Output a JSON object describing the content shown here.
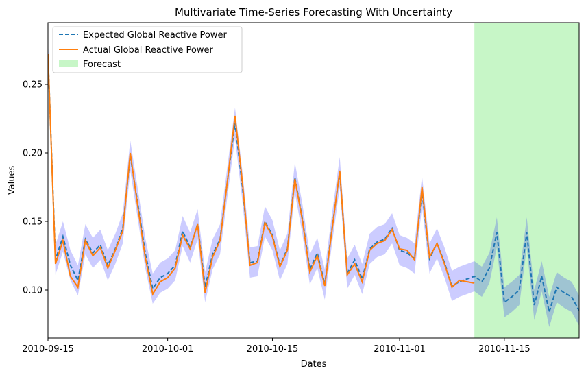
{
  "chart_data": {
    "type": "line",
    "title": "Multivariate Time-Series Forecasting With Uncertainty",
    "xlabel": "Dates",
    "ylabel": "Values",
    "x_tick_labels": [
      "2010-09-15",
      "2010-10-01",
      "2010-10-15",
      "2010-11-01",
      "2010-11-15"
    ],
    "x_tick_dates": [
      "2010-09-15",
      "2010-10-01",
      "2010-10-15",
      "2010-11-01",
      "2010-11-15"
    ],
    "xlim": [
      "2010-09-15",
      "2010-11-25"
    ],
    "y_tick_labels": [
      "0.10",
      "0.15",
      "0.20",
      "0.25"
    ],
    "y_ticks": [
      0.1,
      0.15,
      0.2,
      0.25
    ],
    "ylim": [
      0.065,
      0.295
    ],
    "grid": false,
    "legend_position": "upper-left",
    "legend": [
      "Expected Global Reactive Power",
      "Actual Global Reactive Power",
      "Forecast"
    ],
    "uncertainty_band_half_width": 0.011,
    "forecast_region": {
      "start": "2010-11-11",
      "end": "2010-11-25"
    },
    "colors": {
      "expected": "#1f77b4",
      "actual": "#ff7f0e",
      "band": "#0000ff",
      "band_opacity": 0.2,
      "forecast": "#90ee90",
      "forecast_opacity": 0.5
    },
    "series": [
      {
        "name": "Expected Global Reactive Power",
        "style": "dashed",
        "points": [
          [
            "2010-09-15",
            0.272
          ],
          [
            "2010-09-16",
            0.122
          ],
          [
            "2010-09-17",
            0.139
          ],
          [
            "2010-09-18",
            0.118
          ],
          [
            "2010-09-19",
            0.107
          ],
          [
            "2010-09-20",
            0.137
          ],
          [
            "2010-09-21",
            0.127
          ],
          [
            "2010-09-22",
            0.133
          ],
          [
            "2010-09-23",
            0.118
          ],
          [
            "2010-09-24",
            0.13
          ],
          [
            "2010-09-25",
            0.145
          ],
          [
            "2010-09-26",
            0.198
          ],
          [
            "2010-09-27",
            0.163
          ],
          [
            "2010-09-28",
            0.127
          ],
          [
            "2010-09-29",
            0.101
          ],
          [
            "2010-09-30",
            0.109
          ],
          [
            "2010-10-01",
            0.112
          ],
          [
            "2010-10-02",
            0.118
          ],
          [
            "2010-10-03",
            0.143
          ],
          [
            "2010-10-04",
            0.131
          ],
          [
            "2010-10-05",
            0.148
          ],
          [
            "2010-10-06",
            0.102
          ],
          [
            "2010-10-07",
            0.126
          ],
          [
            "2010-10-08",
            0.137
          ],
          [
            "2010-10-09",
            0.18
          ],
          [
            "2010-10-10",
            0.222
          ],
          [
            "2010-10-11",
            0.175
          ],
          [
            "2010-10-12",
            0.12
          ],
          [
            "2010-10-13",
            0.121
          ],
          [
            "2010-10-14",
            0.15
          ],
          [
            "2010-10-15",
            0.14
          ],
          [
            "2010-10-16",
            0.118
          ],
          [
            "2010-10-17",
            0.13
          ],
          [
            "2010-10-18",
            0.182
          ],
          [
            "2010-10-19",
            0.152
          ],
          [
            "2010-10-20",
            0.115
          ],
          [
            "2010-10-21",
            0.127
          ],
          [
            "2010-10-22",
            0.104
          ],
          [
            "2010-10-23",
            0.146
          ],
          [
            "2010-10-24",
            0.186
          ],
          [
            "2010-10-25",
            0.112
          ],
          [
            "2010-10-26",
            0.122
          ],
          [
            "2010-10-27",
            0.108
          ],
          [
            "2010-10-28",
            0.13
          ],
          [
            "2010-10-29",
            0.135
          ],
          [
            "2010-10-30",
            0.137
          ],
          [
            "2010-10-31",
            0.145
          ],
          [
            "2010-11-01",
            0.129
          ],
          [
            "2010-11-02",
            0.127
          ],
          [
            "2010-11-03",
            0.123
          ],
          [
            "2010-11-04",
            0.172
          ],
          [
            "2010-11-05",
            0.123
          ],
          [
            "2010-11-06",
            0.134
          ],
          [
            "2010-11-07",
            0.12
          ],
          [
            "2010-11-08",
            0.103
          ],
          [
            "2010-11-09",
            0.106
          ],
          [
            "2010-11-10",
            0.108
          ],
          [
            "2010-11-11",
            0.11
          ],
          [
            "2010-11-12",
            0.106
          ],
          [
            "2010-11-13",
            0.116
          ],
          [
            "2010-11-14",
            0.142
          ],
          [
            "2010-11-15",
            0.091
          ],
          [
            "2010-11-16",
            0.095
          ],
          [
            "2010-11-17",
            0.1
          ],
          [
            "2010-11-18",
            0.142
          ],
          [
            "2010-11-19",
            0.089
          ],
          [
            "2010-11-20",
            0.11
          ],
          [
            "2010-11-21",
            0.084
          ],
          [
            "2010-11-22",
            0.102
          ],
          [
            "2010-11-23",
            0.098
          ],
          [
            "2010-11-24",
            0.095
          ],
          [
            "2010-11-25",
            0.085
          ],
          [
            "2010-11-25T12:00:00",
            0.096
          ]
        ]
      },
      {
        "name": "Actual Global Reactive Power",
        "style": "solid",
        "points": [
          [
            "2010-09-15",
            0.272
          ],
          [
            "2010-09-16",
            0.119
          ],
          [
            "2010-09-17",
            0.136
          ],
          [
            "2010-09-18",
            0.11
          ],
          [
            "2010-09-19",
            0.102
          ],
          [
            "2010-09-20",
            0.136
          ],
          [
            "2010-09-21",
            0.125
          ],
          [
            "2010-09-22",
            0.131
          ],
          [
            "2010-09-23",
            0.116
          ],
          [
            "2010-09-24",
            0.129
          ],
          [
            "2010-09-25",
            0.143
          ],
          [
            "2010-09-26",
            0.2
          ],
          [
            "2010-09-27",
            0.161
          ],
          [
            "2010-09-28",
            0.124
          ],
          [
            "2010-09-29",
            0.097
          ],
          [
            "2010-09-30",
            0.106
          ],
          [
            "2010-10-01",
            0.109
          ],
          [
            "2010-10-02",
            0.116
          ],
          [
            "2010-10-03",
            0.14
          ],
          [
            "2010-10-04",
            0.13
          ],
          [
            "2010-10-05",
            0.148
          ],
          [
            "2010-10-06",
            0.098
          ],
          [
            "2010-10-07",
            0.124
          ],
          [
            "2010-10-08",
            0.136
          ],
          [
            "2010-10-09",
            0.18
          ],
          [
            "2010-10-10",
            0.227
          ],
          [
            "2010-10-11",
            0.178
          ],
          [
            "2010-10-12",
            0.118
          ],
          [
            "2010-10-13",
            0.12
          ],
          [
            "2010-10-14",
            0.149
          ],
          [
            "2010-10-15",
            0.139
          ],
          [
            "2010-10-16",
            0.117
          ],
          [
            "2010-10-17",
            0.129
          ],
          [
            "2010-10-18",
            0.181
          ],
          [
            "2010-10-19",
            0.151
          ],
          [
            "2010-10-20",
            0.113
          ],
          [
            "2010-10-21",
            0.125
          ],
          [
            "2010-10-22",
            0.103
          ],
          [
            "2010-10-23",
            0.145
          ],
          [
            "2010-10-24",
            0.187
          ],
          [
            "2010-10-25",
            0.111
          ],
          [
            "2010-10-26",
            0.119
          ],
          [
            "2010-10-27",
            0.106
          ],
          [
            "2010-10-28",
            0.129
          ],
          [
            "2010-10-29",
            0.134
          ],
          [
            "2010-10-30",
            0.136
          ],
          [
            "2010-10-31",
            0.144
          ],
          [
            "2010-11-01",
            0.13
          ],
          [
            "2010-11-02",
            0.129
          ],
          [
            "2010-11-03",
            0.122
          ],
          [
            "2010-11-04",
            0.175
          ],
          [
            "2010-11-05",
            0.124
          ],
          [
            "2010-11-06",
            0.134
          ],
          [
            "2010-11-07",
            0.119
          ],
          [
            "2010-11-08",
            0.102
          ],
          [
            "2010-11-09",
            0.107
          ],
          [
            "2010-11-10",
            0.106
          ],
          [
            "2010-11-11",
            0.105
          ]
        ]
      }
    ]
  }
}
